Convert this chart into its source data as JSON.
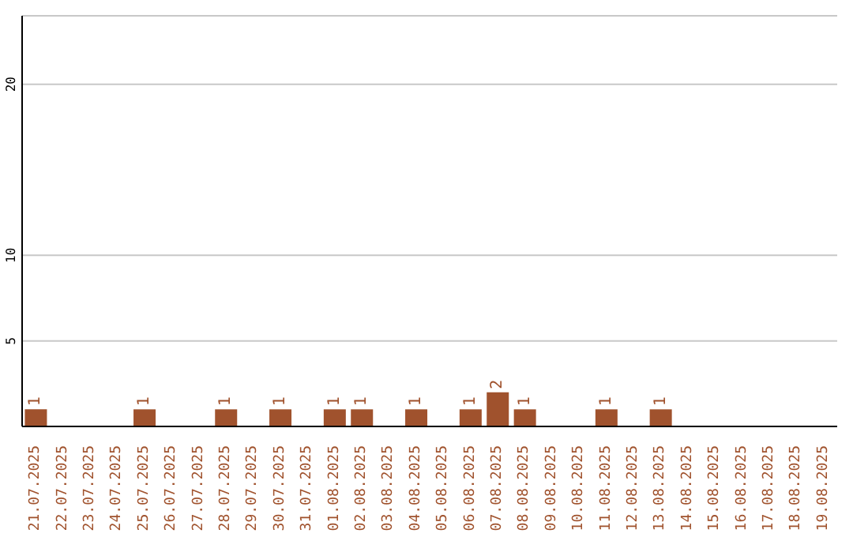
{
  "chart_data": {
    "type": "bar",
    "categories": [
      "21.07.2025",
      "22.07.2025",
      "23.07.2025",
      "24.07.2025",
      "25.07.2025",
      "26.07.2025",
      "27.07.2025",
      "28.07.2025",
      "29.07.2025",
      "30.07.2025",
      "31.07.2025",
      "01.08.2025",
      "02.08.2025",
      "03.08.2025",
      "04.08.2025",
      "05.08.2025",
      "06.08.2025",
      "07.08.2025",
      "08.08.2025",
      "09.08.2025",
      "10.08.2025",
      "11.08.2025",
      "12.08.2025",
      "13.08.2025",
      "14.08.2025",
      "15.08.2025",
      "16.08.2025",
      "17.08.2025",
      "18.08.2025",
      "19.08.2025"
    ],
    "values": [
      1,
      0,
      0,
      0,
      1,
      0,
      0,
      1,
      0,
      1,
      0,
      1,
      1,
      0,
      1,
      0,
      1,
      2,
      1,
      0,
      0,
      1,
      0,
      1,
      0,
      0,
      0,
      0,
      0,
      0
    ],
    "value_labels": [
      "1",
      null,
      null,
      null,
      "1",
      null,
      null,
      "1",
      null,
      "1",
      null,
      "1",
      "1",
      null,
      "1",
      null,
      "1",
      "2",
      "1",
      null,
      null,
      "1",
      null,
      "1",
      null,
      null,
      null,
      null,
      null,
      null
    ],
    "color": "#a0522d",
    "ylim": [
      0,
      24
    ],
    "yticks": [
      5,
      10,
      20
    ],
    "grid": "y"
  }
}
